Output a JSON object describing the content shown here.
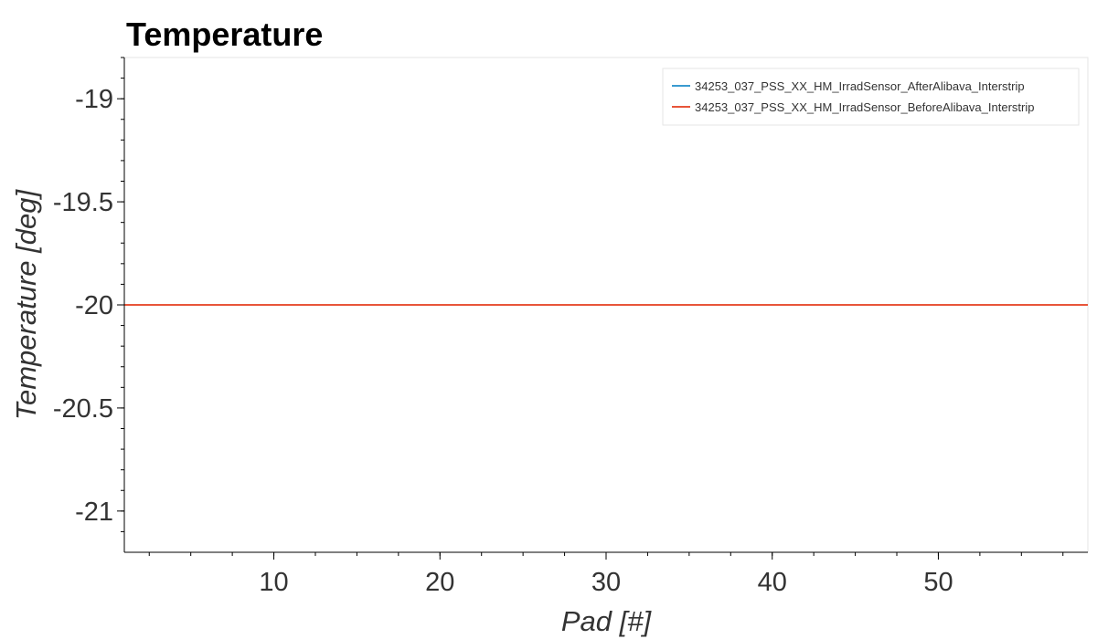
{
  "chart_data": {
    "type": "line",
    "title": "Temperature",
    "xlabel": "Pad [#]",
    "ylabel": "Temperature [deg]",
    "xlim": [
      1,
      59
    ],
    "ylim": [
      -21.2,
      -18.8
    ],
    "x_major_ticks": [
      10,
      20,
      30,
      40,
      50
    ],
    "x_minor_step": 2.5,
    "y_major_ticks": [
      -19,
      -19.5,
      -20,
      -20.5,
      -21
    ],
    "y_tick_labels": [
      "-19",
      "-19.5",
      "-20",
      "-20.5",
      "-21"
    ],
    "y_minor_step": 0.1,
    "grid": false,
    "legend_position": "top-right",
    "series": [
      {
        "name": "34253_037_PSS_XX_HM_IrradSensor_AfterAlibava_Interstrip",
        "color": "#3a9bd0",
        "x": [
          1,
          59
        ],
        "y": [
          -20,
          -20
        ]
      },
      {
        "name": "34253_037_PSS_XX_HM_IrradSensor_BeforeAlibava_Interstrip",
        "color": "#e8553a",
        "x": [
          1,
          59
        ],
        "y": [
          -20,
          -20
        ]
      }
    ]
  }
}
